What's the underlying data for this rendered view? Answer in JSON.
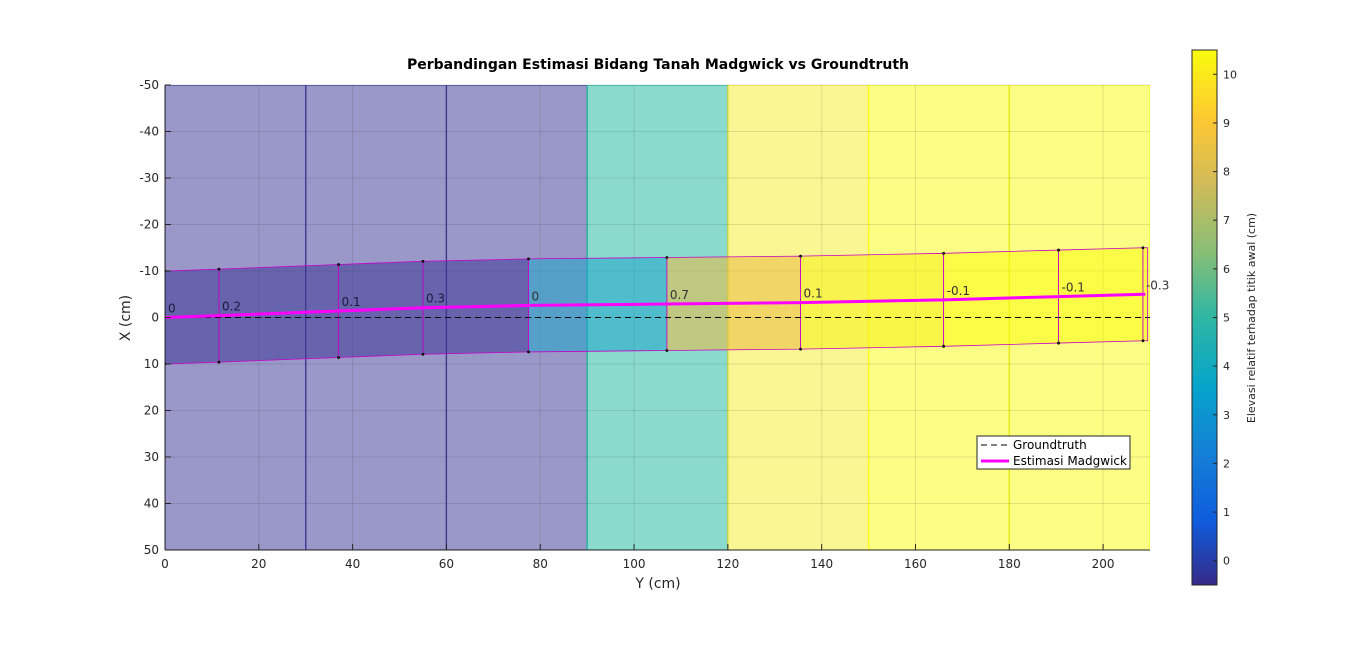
{
  "chart_data": {
    "type": "heatmap",
    "title": "Perbandingan Estimasi Bidang Tanah Madgwick vs Groundtruth",
    "xlabel": "Y (cm)",
    "ylabel": "X (cm)",
    "xlim": [
      0,
      210
    ],
    "ylim": [
      -50,
      50
    ],
    "y_reversed": true,
    "x_ticks": [
      "0",
      "20",
      "40",
      "60",
      "80",
      "100",
      "120",
      "140",
      "160",
      "180",
      "200"
    ],
    "y_ticks": [
      "-50",
      "-40",
      "-30",
      "-20",
      "-10",
      "0",
      "10",
      "20",
      "30",
      "40",
      "50"
    ],
    "grid": true,
    "groundtruth_tiles": [
      {
        "y0": 0,
        "y1": 30,
        "color": "#3e3996"
      },
      {
        "y0": 30,
        "y1": 60,
        "color": "#3e3996"
      },
      {
        "y0": 60,
        "y1": 90,
        "color": "#3e3996"
      },
      {
        "y0": 90,
        "y1": 120,
        "color": "#21b9a2"
      },
      {
        "y0": 120,
        "y1": 150,
        "color": "#f5ee30"
      },
      {
        "y0": 150,
        "y1": 180,
        "color": "#f9fb14"
      },
      {
        "y0": 180,
        "y1": 210,
        "color": "#f9fb14"
      }
    ],
    "estimated_segments": [
      {
        "y0": 0,
        "y1": 11.5,
        "top0": -10,
        "top1": -10.4,
        "bot0": 10,
        "bot1": 9.6,
        "color": "#3e3996",
        "label": "0"
      },
      {
        "y0": 11.5,
        "y1": 37,
        "top0": -10.4,
        "top1": -11.4,
        "bot0": 9.6,
        "bot1": 8.6,
        "color": "#3e3996",
        "label": "0.2"
      },
      {
        "y0": 37,
        "y1": 55,
        "top0": -11.4,
        "top1": -12.1,
        "bot0": 8.6,
        "bot1": 7.9,
        "color": "#3e3996",
        "label": "0.1"
      },
      {
        "y0": 55,
        "y1": 77.5,
        "top0": -12.1,
        "top1": -12.6,
        "bot0": 7.9,
        "bot1": 7.4,
        "color": "#3e3996",
        "label": "0.3"
      },
      {
        "y0": 77.5,
        "y1": 107,
        "top0": -12.6,
        "top1": -12.9,
        "bot0": 7.4,
        "bot1": 7.1,
        "color": "#1fa5c9",
        "label": "0"
      },
      {
        "y0": 107,
        "y1": 135.5,
        "top0": -12.9,
        "top1": -13.2,
        "bot0": 7.1,
        "bot1": 6.8,
        "color": "#e9b941",
        "label": "0.7"
      },
      {
        "y0": 135.5,
        "y1": 166,
        "top0": -13.2,
        "top1": -13.8,
        "bot0": 6.8,
        "bot1": 6.2,
        "color": "#f6f018",
        "label": "0.1"
      },
      {
        "y0": 166,
        "y1": 190.5,
        "top0": -13.8,
        "top1": -14.5,
        "bot0": 6.2,
        "bot1": 5.5,
        "color": "#f9fb14",
        "label": "-0.1"
      },
      {
        "y0": 190.5,
        "y1": 208.5,
        "top0": -14.5,
        "top1": -15,
        "bot0": 5.5,
        "bot1": 5,
        "color": "#f9fb14",
        "label": "-0.1"
      },
      {
        "y0": 208.5,
        "y1": 209.5,
        "top0": -15,
        "top1": -15,
        "bot0": 5,
        "bot1": 5,
        "color": "#f9fb14",
        "label": "-0.3"
      }
    ],
    "series": [
      {
        "name": "Groundtruth",
        "color": "#000000",
        "style": "dashed",
        "x": [
          0,
          212
        ],
        "y": [
          0,
          0
        ]
      },
      {
        "name": "Estimasi Madgwick",
        "color": "#ff00ff",
        "style": "solid",
        "x": [
          0,
          11.5,
          37,
          55,
          77.5,
          107,
          135.5,
          166,
          190.5,
          209
        ],
        "y": [
          0,
          -0.4,
          -1.4,
          -2.1,
          -2.6,
          -2.9,
          -3.2,
          -3.8,
          -4.5,
          -5
        ]
      }
    ],
    "legend": {
      "position": "bottom-right",
      "entries": [
        "Groundtruth",
        "Estimasi Madgwick"
      ]
    },
    "colorbar": {
      "label": "Elevasi relatif terhadap titik awal (cm)",
      "range": [
        -0.5,
        10.5
      ],
      "ticks": [
        "0",
        "1",
        "2",
        "3",
        "4",
        "5",
        "6",
        "7",
        "8",
        "9",
        "10"
      ],
      "colormap": "parula"
    }
  }
}
